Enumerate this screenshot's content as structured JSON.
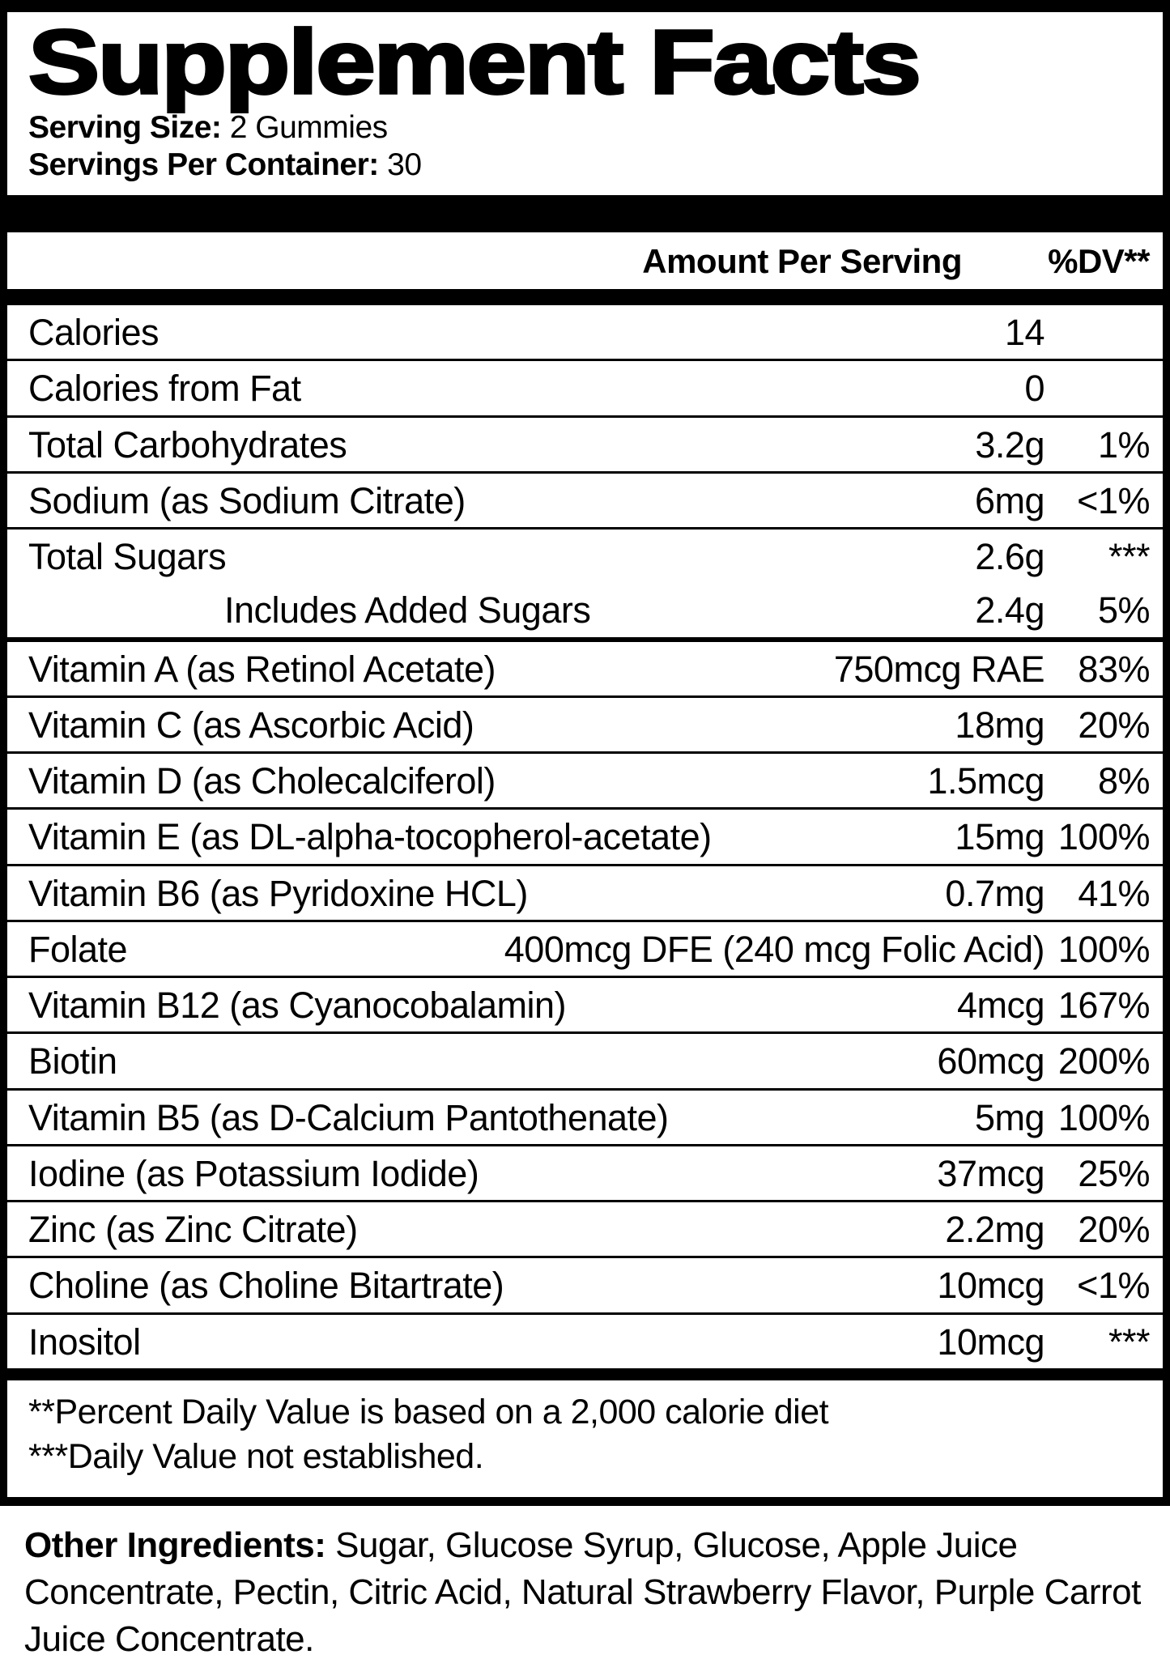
{
  "title": "Supplement Facts",
  "serving": {
    "size_label": "Serving Size:",
    "size_value": " 2 Gummies",
    "per_container_label": "Servings Per Container:",
    "per_container_value": " 30"
  },
  "table": {
    "amount_header": "Amount Per Serving",
    "dv_header": "%DV**",
    "rows": [
      {
        "name": "Calories",
        "amount": "14",
        "dv": ""
      },
      {
        "name": "Calories from Fat",
        "amount": "0",
        "dv": ""
      },
      {
        "name": "Total Carbohydrates",
        "amount": "3.2g",
        "dv": "1%"
      },
      {
        "name": "Sodium (as Sodium Citrate)",
        "amount": "6mg",
        "dv": "<1%"
      },
      {
        "name": "Total Sugars",
        "amount": "2.6g",
        "dv": "***"
      },
      {
        "name": "Includes Added Sugars",
        "amount": "2.4g",
        "dv": "5%",
        "indent": true,
        "divider_before": false
      },
      {
        "name": "Vitamin A (as Retinol Acetate)",
        "amount": "750mcg RAE",
        "dv": "83%",
        "thick_divider_before": true
      },
      {
        "name": "Vitamin C (as Ascorbic Acid)",
        "amount": "18mg",
        "dv": "20%"
      },
      {
        "name": "Vitamin D (as Cholecalciferol)",
        "amount": "1.5mcg",
        "dv": "8%"
      },
      {
        "name": "Vitamin E (as DL-alpha-tocopherol-acetate)",
        "amount": "15mg",
        "dv": "100%"
      },
      {
        "name": "Vitamin B6 (as Pyridoxine HCL)",
        "amount": "0.7mg",
        "dv": "41%"
      },
      {
        "name": "Folate",
        "amount": "400mcg DFE (240 mcg Folic Acid)",
        "dv": "100%"
      },
      {
        "name": "Vitamin B12 (as Cyanocobalamin)",
        "amount": "4mcg",
        "dv": "167%"
      },
      {
        "name": "Biotin",
        "amount": "60mcg",
        "dv": "200%"
      },
      {
        "name": "Vitamin B5 (as D-Calcium Pantothenate)",
        "amount": "5mg",
        "dv": "100%"
      },
      {
        "name": "Iodine (as Potassium Iodide)",
        "amount": "37mcg",
        "dv": "25%"
      },
      {
        "name": "Zinc (as Zinc Citrate)",
        "amount": "2.2mg",
        "dv": "20%"
      },
      {
        "name": "Choline (as Choline Bitartrate)",
        "amount": "10mcg",
        "dv": "<1%"
      },
      {
        "name": "Inositol",
        "amount": "10mcg",
        "dv": "***"
      }
    ]
  },
  "footnotes": [
    "**Percent Daily Value is based on a 2,000 calorie diet",
    "***Daily Value not established."
  ],
  "other_ingredients": {
    "label": "Other Ingredients:",
    "text": " Sugar, Glucose Syrup, Glucose, Apple Juice Concentrate, Pectin, Citric Acid, Natural Strawberry Flavor, Purple Carrot Juice Concentrate."
  },
  "colors": {
    "ink": "#000000",
    "background": "#ffffff"
  }
}
